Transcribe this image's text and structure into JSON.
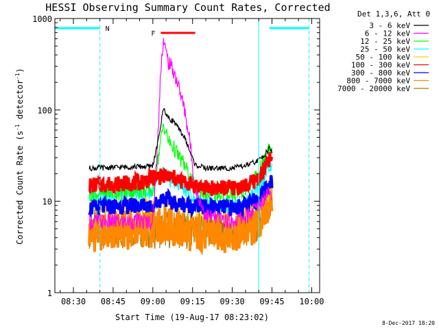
{
  "chart_data": {
    "type": "line",
    "title": "HESSI Observing Summary Count Rates, Corrected",
    "ylabel": "Corrected Count Rate (s-1 detector-1)",
    "ylabel_parts": [
      "Corrected Count Rate (s",
      "-1",
      " detector",
      "-1",
      ")"
    ],
    "xlabel": "Start Time (19-Aug-17 08:23:02)",
    "y_scale": "log",
    "ylim": [
      1,
      1000
    ],
    "y_ticks": [
      1,
      10,
      100,
      1000
    ],
    "y_tick_labels": [
      "1",
      "10",
      "100",
      "1000"
    ],
    "xlim": [
      "08:23",
      "10:03"
    ],
    "x_ticks": [
      "08:30",
      "08:45",
      "09:00",
      "09:15",
      "09:30",
      "09:45",
      "10:00"
    ],
    "x_tick_labels": [
      "08:30",
      "08:45",
      "09:00",
      "09:15",
      "09:30",
      "09:45",
      "10:00"
    ],
    "legend_title": "Det 1,3,6, Att 0",
    "legend_position": "outside right",
    "series": [
      {
        "name": "3 - 6 keV",
        "color": "#000000",
        "x": [
          "08:36",
          "08:55",
          "08:59",
          "09:00",
          "09:02",
          "09:04",
          "09:06",
          "09:08",
          "09:10",
          "09:12",
          "09:14",
          "09:16",
          "09:20",
          "09:30",
          "09:36",
          "09:40",
          "09:42",
          "09:44",
          "09:45"
        ],
        "values": [
          23,
          24,
          24,
          25,
          45,
          105,
          80,
          75,
          60,
          50,
          35,
          25,
          23,
          23,
          25,
          28,
          32,
          38,
          35
        ]
      },
      {
        "name": "6 - 12 keV",
        "color": "#ff00ff",
        "x": [
          "08:36",
          "08:50",
          "08:55",
          "09:00",
          "09:02",
          "09:03",
          "09:04",
          "09:05",
          "09:06",
          "09:08",
          "09:10",
          "09:12",
          "09:14",
          "09:16",
          "09:20",
          "09:30",
          "09:36",
          "09:40",
          "09:42",
          "09:44",
          "09:45"
        ],
        "values": [
          6,
          6,
          6,
          6,
          55,
          300,
          580,
          420,
          330,
          260,
          170,
          100,
          45,
          14,
          7,
          6,
          7,
          9,
          11,
          14,
          12
        ]
      },
      {
        "name": "12 - 25 keV",
        "color": "#00ff00",
        "x": [
          "08:36",
          "08:55",
          "09:00",
          "09:02",
          "09:04",
          "09:06",
          "09:08",
          "09:10",
          "09:12",
          "09:14",
          "09:16",
          "09:20",
          "09:30",
          "09:36",
          "09:40",
          "09:42",
          "09:44",
          "09:45"
        ],
        "values": [
          12,
          13,
          13,
          30,
          70,
          45,
          38,
          30,
          25,
          18,
          14,
          12,
          12,
          14,
          20,
          28,
          42,
          38
        ]
      },
      {
        "name": "25 - 50 keV",
        "color": "#00ffff",
        "x": [
          "08:36",
          "08:55",
          "09:00",
          "09:04",
          "09:08",
          "09:12",
          "09:16",
          "09:20",
          "09:30",
          "09:36",
          "09:40",
          "09:42",
          "09:44",
          "09:45"
        ],
        "values": [
          11,
          12,
          13,
          20,
          16,
          14,
          10,
          9,
          9,
          10,
          14,
          18,
          24,
          22
        ]
      },
      {
        "name": "50 - 100 keV",
        "color": "#ffcc00",
        "x": [
          "08:36",
          "08:55",
          "09:00",
          "09:04",
          "09:08",
          "09:16",
          "09:30",
          "09:38",
          "09:42",
          "09:45"
        ],
        "values": [
          9,
          9,
          9,
          11,
          9,
          8,
          8,
          9,
          11,
          13
        ]
      },
      {
        "name": "100 - 300 keV",
        "color": "#ff0000",
        "x": [
          "08:36",
          "08:55",
          "09:00",
          "09:04",
          "09:08",
          "09:12",
          "09:16",
          "09:20",
          "09:30",
          "09:36",
          "09:40",
          "09:42",
          "09:44",
          "09:45"
        ],
        "values": [
          15,
          16,
          18,
          19,
          18,
          16,
          15,
          14,
          14,
          15,
          18,
          22,
          28,
          30
        ]
      },
      {
        "name": "300 - 800 keV",
        "color": "#0000ff",
        "x": [
          "08:36",
          "08:55",
          "09:00",
          "09:04",
          "09:08",
          "09:16",
          "09:20",
          "09:30",
          "09:36",
          "09:40",
          "09:42",
          "09:44",
          "09:45"
        ],
        "values": [
          8.5,
          9,
          9,
          11,
          9.5,
          9,
          8.5,
          8.5,
          9,
          11,
          13,
          16,
          17
        ]
      },
      {
        "name": "800 - 7000 keV",
        "color": "#ff8800",
        "x": [
          "08:36",
          "08:55",
          "09:00",
          "09:04",
          "09:08",
          "09:16",
          "09:20",
          "09:30",
          "09:38",
          "09:42",
          "09:44",
          "09:45"
        ],
        "values": [
          4.5,
          5,
          5,
          6,
          5,
          4.5,
          4.5,
          4.5,
          5,
          7,
          10,
          11
        ]
      },
      {
        "name": "7000 - 20000 keV",
        "color": "#aa7700",
        "x": [
          "08:36",
          "08:55",
          "09:00",
          "09:10",
          "09:20",
          "09:30",
          "09:40",
          "09:44",
          "09:45"
        ],
        "values": [
          5,
          5,
          5,
          5,
          5,
          5,
          5.5,
          8,
          9
        ]
      }
    ],
    "annotations": {
      "N": {
        "text": "N",
        "color": "#00ffff"
      },
      "F": {
        "text": "F",
        "color": "#ff0000"
      },
      "night_bars": [
        {
          "x": [
            "08:23",
            "08:40"
          ]
        },
        {
          "x": [
            "09:44",
            "09:59"
          ]
        }
      ],
      "flare_bar": {
        "x": [
          "09:03",
          "09:16"
        ]
      },
      "vertical_lines": [
        {
          "x": "08:23",
          "style": "solid"
        },
        {
          "x": "08:40",
          "style": "dashed"
        },
        {
          "x": "09:40",
          "style": "solid"
        },
        {
          "x": "09:59",
          "style": "dashed"
        }
      ]
    },
    "timestamp": "8-Dec-2017 18:20"
  }
}
